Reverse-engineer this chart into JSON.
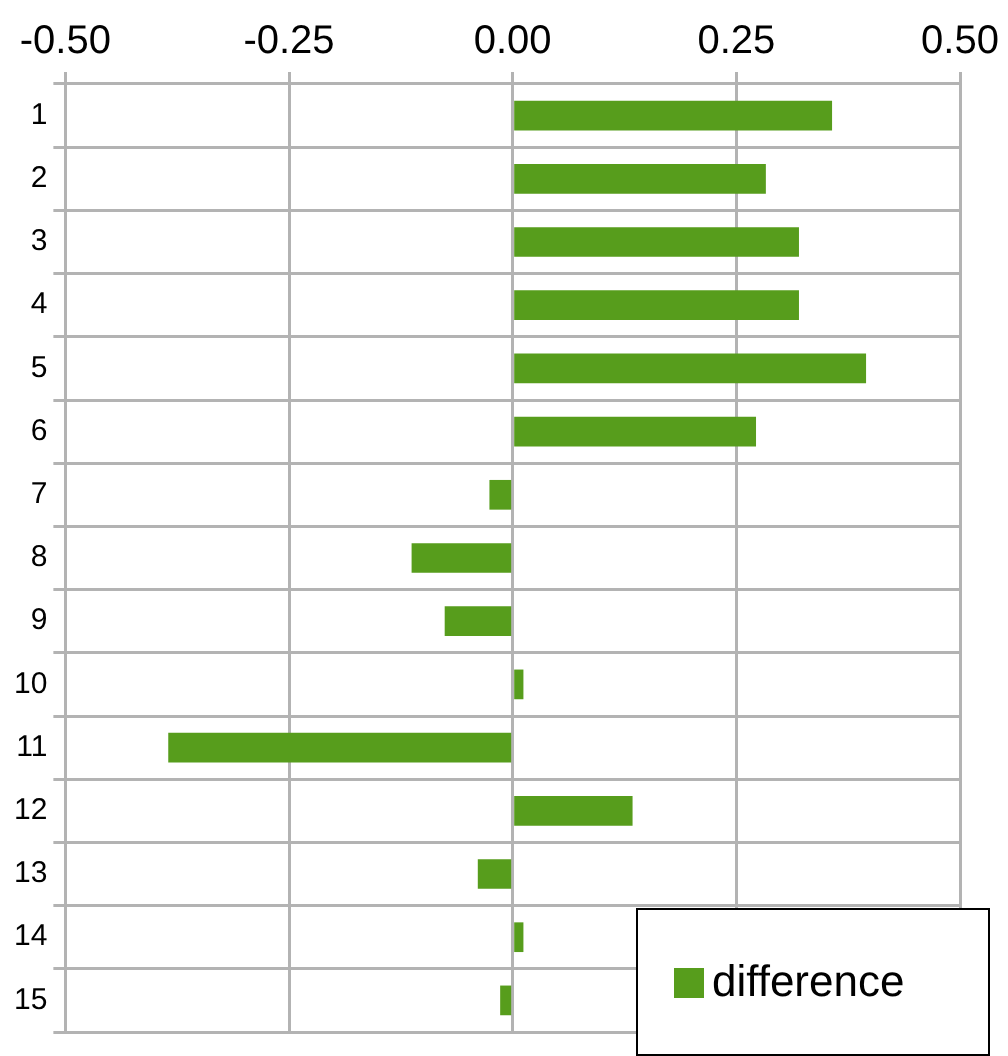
{
  "chart_data": {
    "type": "bar",
    "orientation": "horizontal",
    "categories": [
      "1",
      "2",
      "3",
      "4",
      "5",
      "6",
      "7",
      "8",
      "9",
      "10",
      "11",
      "12",
      "13",
      "14",
      "15"
    ],
    "series": [
      {
        "name": "difference",
        "color": "#579d1c",
        "values": [
          0.357,
          0.283,
          0.32,
          0.32,
          0.395,
          0.272,
          -0.026,
          -0.113,
          -0.076,
          0.012,
          -0.385,
          0.134,
          -0.039,
          0.012,
          -0.014
        ]
      }
    ],
    "xlim": [
      -0.5,
      0.5
    ],
    "xticks": [
      {
        "value": -0.5,
        "label": "-0.50"
      },
      {
        "value": -0.25,
        "label": "-0.25"
      },
      {
        "value": 0,
        "label": "0.00"
      },
      {
        "value": 0.25,
        "label": "0.25"
      },
      {
        "value": 0.5,
        "label": "0.50"
      }
    ],
    "grid": true,
    "legend": "bottom right"
  }
}
